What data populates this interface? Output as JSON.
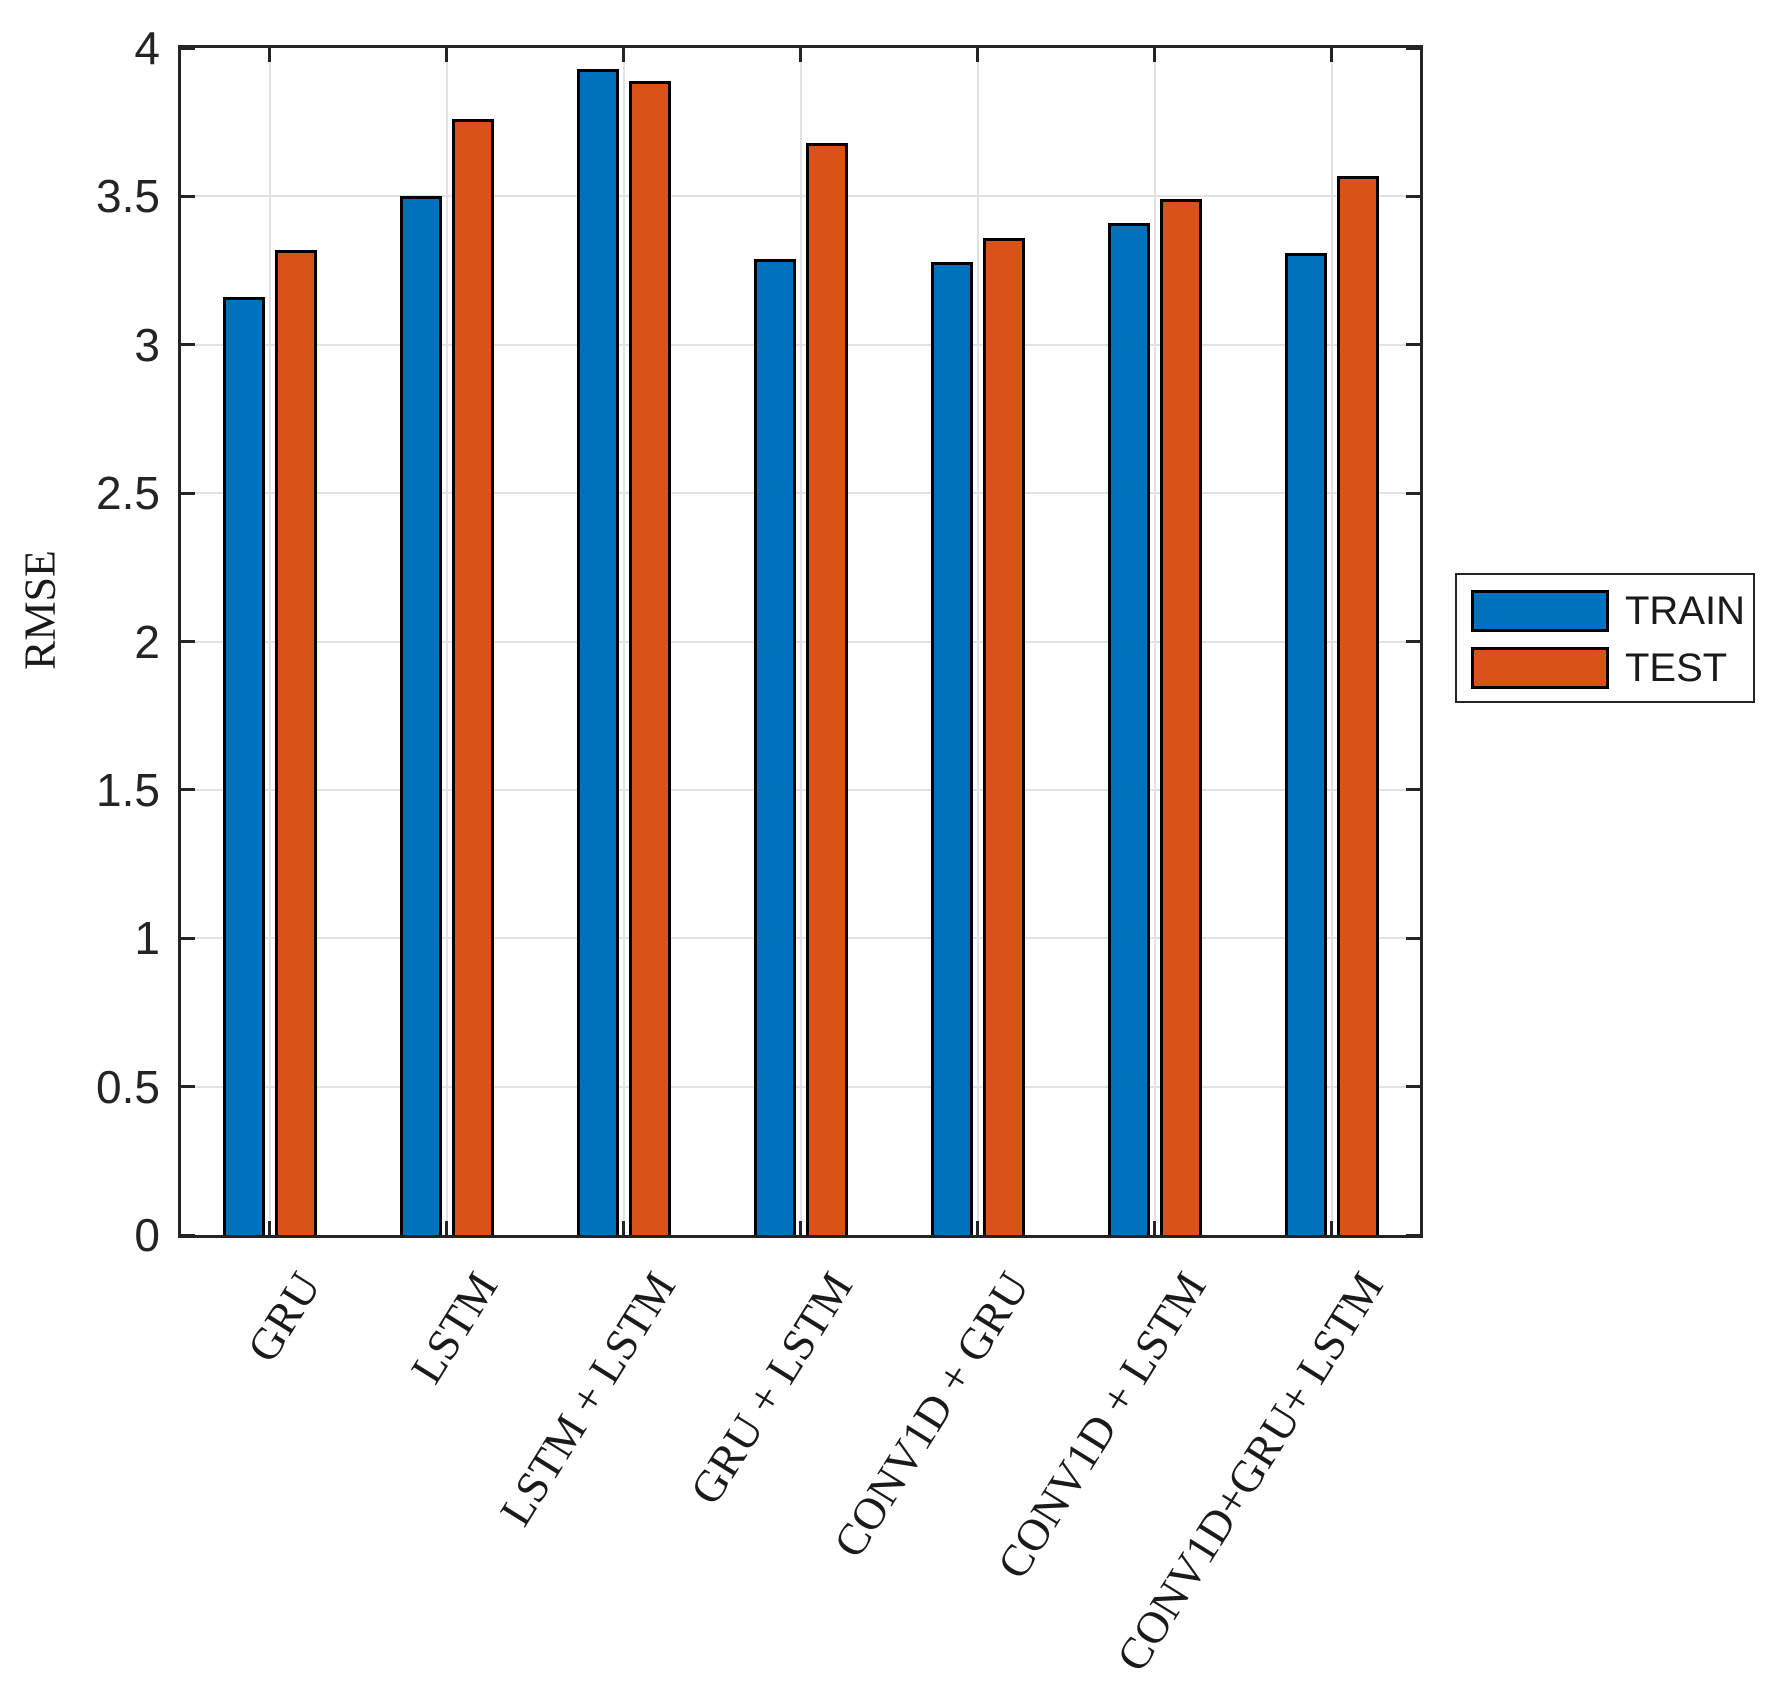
{
  "chart_data": {
    "type": "bar",
    "categories": [
      "GRU",
      "LSTM",
      "LSTM + LSTM",
      "GRU + LSTM",
      "CONV1D + GRU",
      "CONV1D + LSTM",
      "CONV1D+GRU+ LSTM"
    ],
    "series": [
      {
        "name": "TRAIN",
        "color": "#0072BD",
        "values": [
          3.16,
          3.5,
          3.93,
          3.29,
          3.28,
          3.41,
          3.31
        ]
      },
      {
        "name": "TEST",
        "color": "#D95319",
        "values": [
          3.32,
          3.76,
          3.89,
          3.68,
          3.36,
          3.49,
          3.57
        ]
      }
    ],
    "title": "",
    "xlabel": "",
    "ylabel": "RMSE",
    "ylim": [
      0,
      4
    ],
    "ytick_step": 0.5,
    "ytick_labels": [
      "0",
      "0.5",
      "1",
      "1.5",
      "2",
      "2.5",
      "3",
      "3.5",
      "4"
    ],
    "grid": true,
    "legend_position": "outside-right",
    "bar_edge_color": "#000000",
    "grid_color": "#E2E2E2",
    "axis_color": "#242424"
  }
}
